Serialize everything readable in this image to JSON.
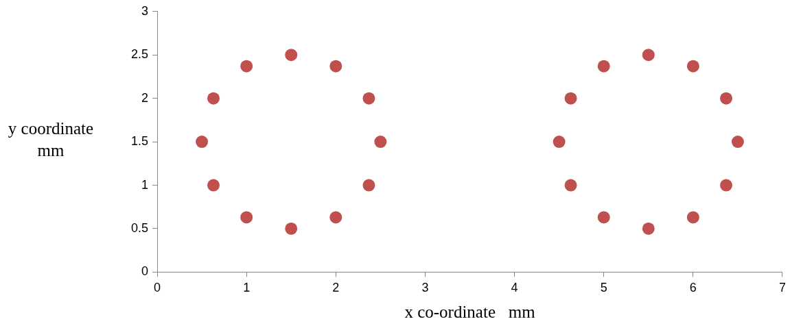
{
  "chart_data": {
    "type": "scatter",
    "xlabel": "x co-ordinate   mm",
    "ylabel": "y coordinate mm",
    "x": [
      0.5,
      0.63,
      1,
      1.5,
      2,
      2.37,
      2.5,
      2.37,
      2,
      1.5,
      1,
      0.63,
      4.5,
      4.63,
      5,
      5.5,
      6,
      6.37,
      6.5,
      6.37,
      6,
      5.5,
      5,
      4.63
    ],
    "series": [
      {
        "color": "#c0504d",
        "values": [
          1.5,
          2,
          2.37,
          2.5,
          2.37,
          2,
          1.5,
          1,
          0.63,
          0.5,
          0.63,
          1,
          1.5,
          2,
          2.37,
          2.5,
          2.37,
          2,
          1.5,
          1,
          0.63,
          0.5,
          0.63,
          1
        ]
      }
    ],
    "xlim": [
      0,
      7
    ],
    "xticks": [
      0,
      1,
      2,
      3,
      4,
      5,
      6,
      7
    ],
    "ylim": [
      0,
      3
    ],
    "yticks": [
      0,
      0.5,
      1,
      1.5,
      2,
      2.5,
      3
    ],
    "grid": false,
    "legend": false,
    "marker": "circle"
  }
}
